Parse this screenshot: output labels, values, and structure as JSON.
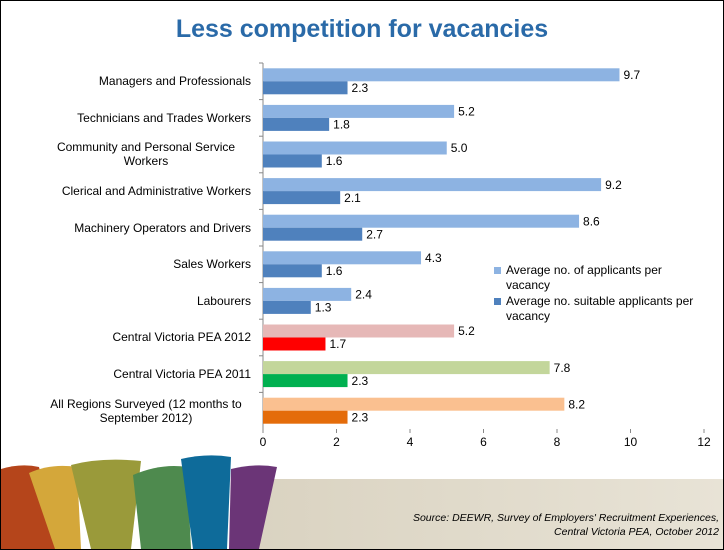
{
  "chart_data": {
    "type": "barh",
    "title": "Less competition for vacancies",
    "categories": [
      "Managers and Professionals",
      "Technicians and Trades Workers",
      "Community and Personal Service Workers",
      "Clerical and Administrative Workers",
      "Machinery Operators and Drivers",
      "Sales Workers",
      "Labourers",
      "Central Victoria PEA 2012",
      "Central Victoria PEA 2011",
      "All Regions Surveyed (12 months to September 2012)"
    ],
    "series": [
      {
        "name": "Average no. of applicants per vacancy",
        "color": "#8db3e2",
        "colors": [
          "#8db3e2",
          "#8db3e2",
          "#8db3e2",
          "#8db3e2",
          "#8db3e2",
          "#8db3e2",
          "#8db3e2",
          "#e6b8b7",
          "#c3d69b",
          "#fac090"
        ],
        "values": [
          9.7,
          5.2,
          5.0,
          9.2,
          8.6,
          4.3,
          2.4,
          5.2,
          7.8,
          8.2
        ],
        "value_labels": [
          "9.7",
          "5.2",
          "5.0",
          "9.2",
          "8.6",
          "4.3",
          "2.4",
          "5.2",
          "7.8",
          "8.2"
        ]
      },
      {
        "name": "Average no. suitable applicants per vacancy",
        "color": "#4f81bd",
        "colors": [
          "#4f81bd",
          "#4f81bd",
          "#4f81bd",
          "#4f81bd",
          "#4f81bd",
          "#4f81bd",
          "#4f81bd",
          "#ff0000",
          "#00b050",
          "#e46c0a"
        ],
        "values": [
          2.3,
          1.8,
          1.6,
          2.1,
          2.7,
          1.6,
          1.3,
          1.7,
          2.3,
          2.3
        ],
        "value_labels": [
          "2.3",
          "1.8",
          "1.6",
          "2.1",
          "2.7",
          "1.6",
          "1.3",
          "1.7",
          "2.3",
          "2.3"
        ]
      }
    ],
    "xlim": [
      0,
      12
    ],
    "xticks": [
      0,
      2,
      4,
      6,
      8,
      10,
      12
    ],
    "legend": "right",
    "source": "Source:  DEEWR, Survey of Employers' Recruitment Experiences, Central Victoria PEA, October 2012"
  }
}
